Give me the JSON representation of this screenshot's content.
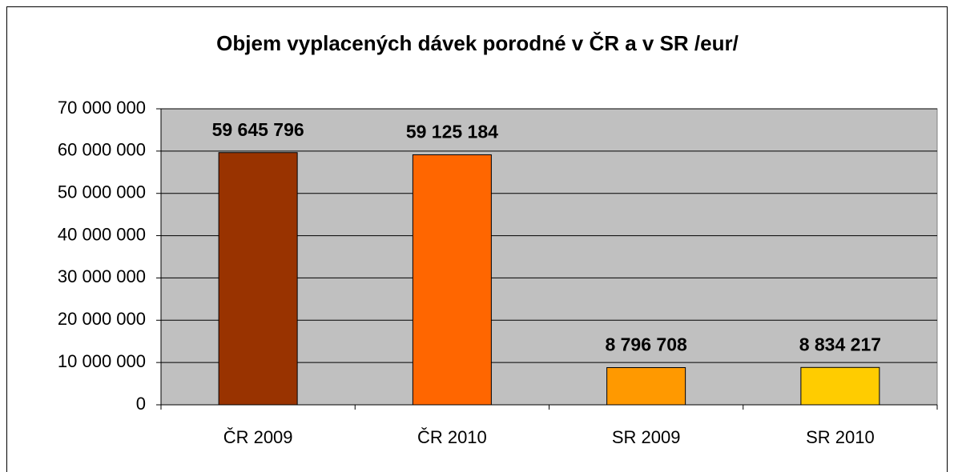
{
  "chart_data": {
    "type": "bar",
    "title": "Objem vyplacených dávek porodné v ČR a v SR /eur/",
    "categories": [
      "ČR 2009",
      "ČR 2010",
      "SR 2009",
      "SR 2010"
    ],
    "values": [
      59645796,
      59125184,
      8796708,
      8834217
    ],
    "value_labels": [
      "59 645 796",
      "59 125 184",
      "8 796 708",
      "8 834 217"
    ],
    "colors": [
      "#993300",
      "#ff6600",
      "#ff9900",
      "#ffcc00"
    ],
    "ylim": [
      0,
      70000000
    ],
    "yticks": [
      0,
      {
        "value": 10000000,
        "label": "10 000 000"
      },
      {
        "value": 20000000,
        "label": "20 000 000"
      },
      {
        "value": 30000000,
        "label": "30 000 000"
      },
      {
        "value": 40000000,
        "label": "40 000 000"
      },
      {
        "value": 50000000,
        "label": "50 000 000"
      },
      {
        "value": 60000000,
        "label": "60 000 000"
      },
      {
        "value": 70000000,
        "label": "70 000 000"
      }
    ],
    "grid": true
  }
}
